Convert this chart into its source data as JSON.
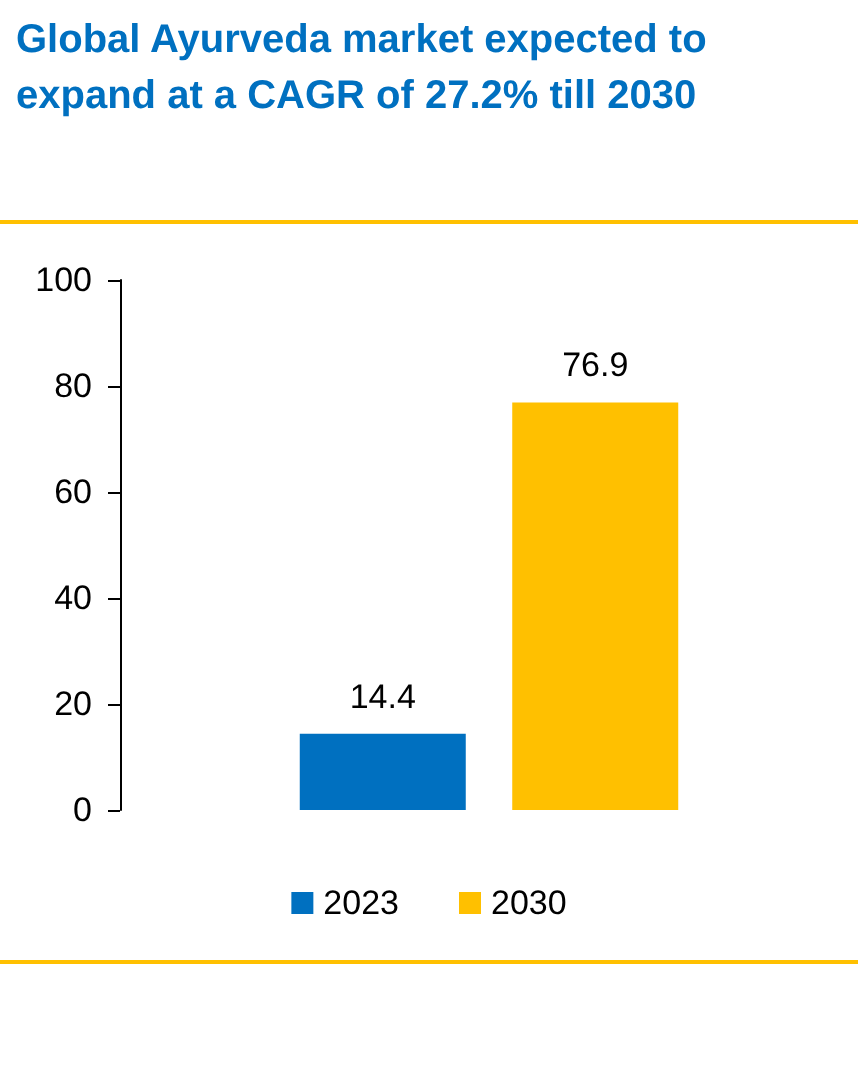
{
  "chart_data": {
    "type": "bar",
    "title": "Global Ayurveda market expected to expand at a CAGR of 27.2% till 2030",
    "categories": [
      null
    ],
    "series": [
      {
        "name": "2023",
        "color": "#0070c0",
        "values": [
          14.4
        ]
      },
      {
        "name": "2030",
        "color": "#ffc000",
        "values": [
          76.9
        ]
      }
    ],
    "ylim": [
      0,
      100
    ],
    "yticks": [
      0,
      20,
      40,
      60,
      80,
      100
    ],
    "grid": false,
    "legend": "bottom",
    "data_labels": true
  }
}
